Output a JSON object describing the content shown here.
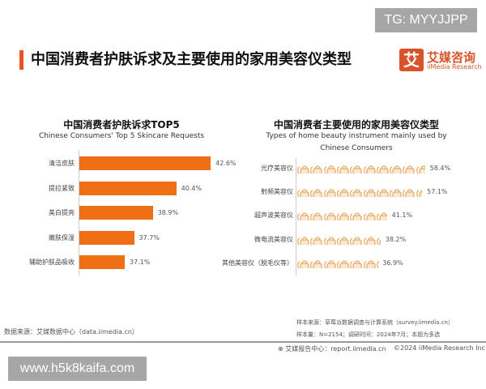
{
  "watermark_top": "TG: MYYJJPP",
  "watermark_bottom": "www.h5k8kaifa.com",
  "header": {
    "title": "中国消费者护肤诉求及主要使用的家用美容仪类型",
    "logo_mark": "艾",
    "logo_cn": "艾媒咨询",
    "logo_en": "iiMedia Research"
  },
  "chart_data": [
    {
      "type": "bar",
      "orientation": "horizontal",
      "title": "中国消费者护肤诉求TOP5",
      "subtitle": "Chinese Consumers' Top 5 Skincare Requests",
      "categories": [
        "清洁皮肤",
        "提拉紧致",
        "美白提亮",
        "嫩肤保湿",
        "辅助护肤品吸收"
      ],
      "values": [
        42.6,
        40.4,
        38.9,
        37.7,
        37.1
      ],
      "labels": [
        "42.6%",
        "40.4%",
        "38.9%",
        "37.7%",
        "37.1%"
      ],
      "color": "#ef7014",
      "grid": false
    },
    {
      "type": "bar",
      "style": "pictograph",
      "title": "中国消费者主要使用的家用美容仪类型",
      "subtitle_line1": "Types of home beauty instrument mainly used by",
      "subtitle_line2": "Chinese Consumers",
      "categories": [
        "光疗美容仪",
        "射频美容仪",
        "超声波美容仪",
        "微电流美容仪",
        "其他美容仪（脱毛仪等）"
      ],
      "values": [
        58.4,
        57.1,
        41.1,
        38.2,
        36.9
      ],
      "labels": [
        "58.4%",
        "57.1%",
        "41.1%",
        "38.2%",
        "36.9%"
      ],
      "icon": "beauty-device-icon",
      "color": "#e8a760",
      "grid": false
    }
  ],
  "footer": {
    "source": "数据来源：艾媒数据中心（data.iimedia.cn）",
    "sample_source": "样本来源：草莓派数据调查与计算系统（survey.iimedia.cn）",
    "sample_size": "样本量：N=2154；调研时间：2024年7月；本题为多选",
    "report": "艾媒报告中心：report.iimedia.cn",
    "copyright": "©2024  iiMedia Research  Inc"
  }
}
